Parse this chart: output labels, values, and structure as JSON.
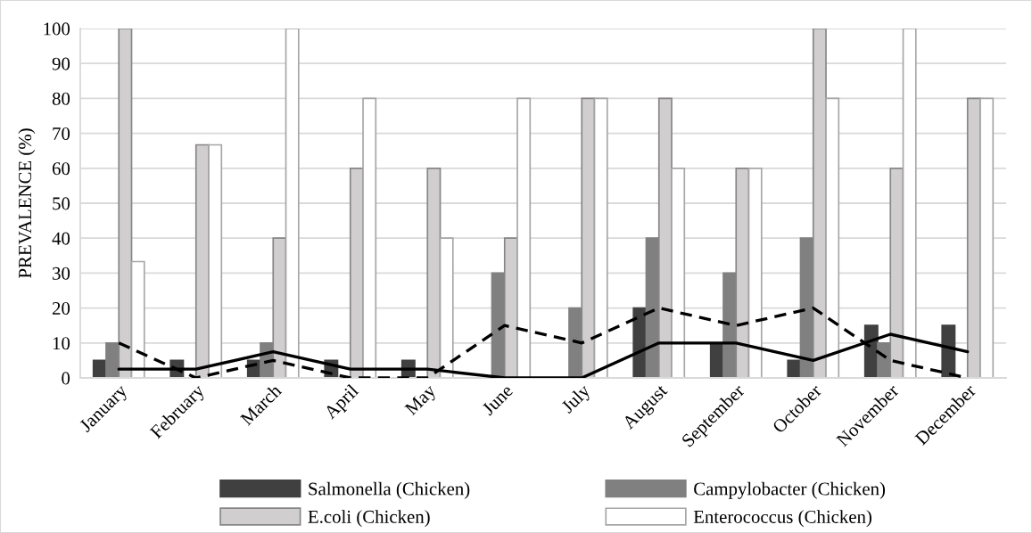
{
  "chart_data": {
    "type": "bar",
    "ylabel": "PREVALENCE (%)",
    "categories": [
      "January",
      "February",
      "March",
      "April",
      "May",
      "June",
      "July",
      "August",
      "September",
      "October",
      "November",
      "December"
    ],
    "series": [
      {
        "name": "Salmonella (Chicken)",
        "color": "#404040",
        "values": [
          5,
          5,
          5,
          5,
          5,
          0,
          0,
          20,
          10,
          5,
          15,
          15
        ]
      },
      {
        "name": "Campylobacter (Chicken)",
        "color": "#808080",
        "values": [
          10,
          0,
          10,
          0,
          0,
          30,
          20,
          40,
          30,
          40,
          10,
          0
        ]
      },
      {
        "name": "E.coli (Chicken)",
        "color": "#d0cece",
        "values": [
          100,
          66.7,
          40,
          60,
          60,
          40,
          80,
          80,
          60,
          100,
          60,
          80
        ]
      },
      {
        "name": "Enterococcus (Chicken)",
        "color": "#ffffff",
        "values": [
          33.3,
          66.7,
          100,
          80,
          40,
          80,
          80,
          60,
          60,
          80,
          100,
          80
        ]
      },
      {
        "type": "line",
        "color": "#000000",
        "line_style": "solid",
        "values": [
          2.5,
          2.5,
          7.5,
          2.5,
          2.5,
          0,
          0,
          10,
          10,
          5,
          12.5,
          7.5
        ]
      },
      {
        "type": "line",
        "color": "#000000",
        "line_style": "dashed",
        "values": [
          10,
          0,
          5,
          0,
          0,
          15,
          10,
          20,
          15,
          20,
          5,
          0
        ]
      }
    ],
    "ylim": [
      0,
      100
    ],
    "yticks": [
      0,
      10,
      20,
      30,
      40,
      50,
      60,
      70,
      80,
      90,
      100
    ],
    "grid": "y",
    "legend": "bottom"
  }
}
